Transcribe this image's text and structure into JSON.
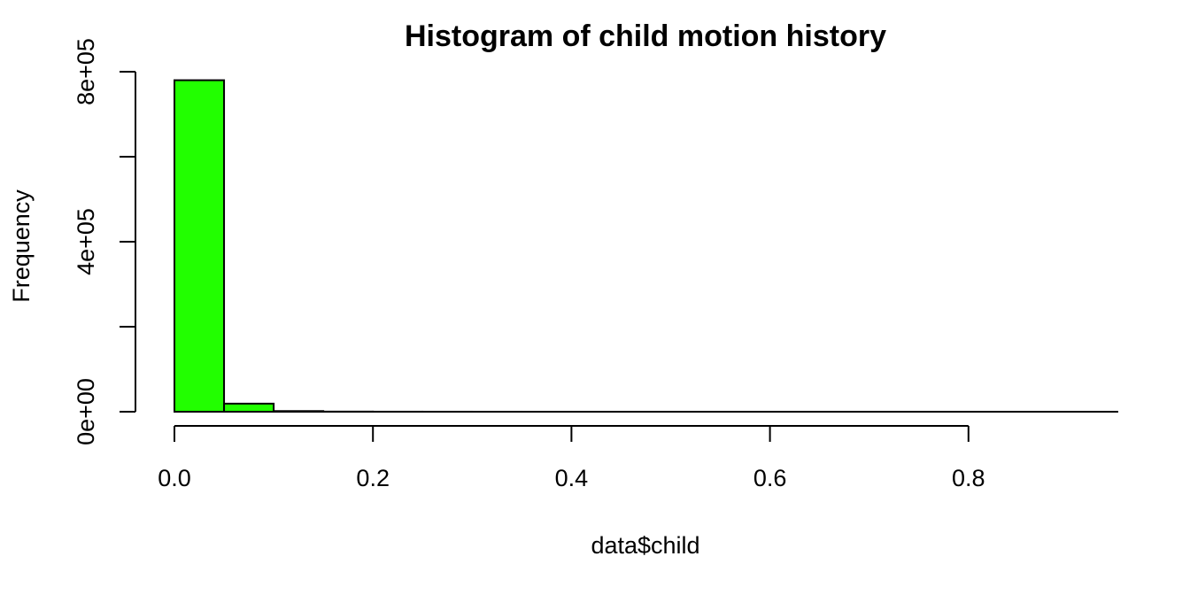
{
  "chart_data": {
    "type": "bar",
    "title": "Histogram of child motion history",
    "xlabel": "data$child",
    "ylabel": "Frequency",
    "bar_color": "#22ff00",
    "bins": [
      {
        "start": 0.0,
        "end": 0.05,
        "count": 780000
      },
      {
        "start": 0.05,
        "end": 0.1,
        "count": 19000
      },
      {
        "start": 0.1,
        "end": 0.15,
        "count": 1500
      },
      {
        "start": 0.15,
        "end": 0.2,
        "count": 300
      },
      {
        "start": 0.2,
        "end": 0.25,
        "count": 100
      },
      {
        "start": 0.25,
        "end": 0.3,
        "count": 50
      },
      {
        "start": 0.3,
        "end": 0.35,
        "count": 20
      },
      {
        "start": 0.35,
        "end": 0.4,
        "count": 10
      },
      {
        "start": 0.4,
        "end": 0.45,
        "count": 5
      },
      {
        "start": 0.45,
        "end": 0.5,
        "count": 3
      },
      {
        "start": 0.5,
        "end": 0.55,
        "count": 2
      },
      {
        "start": 0.55,
        "end": 0.6,
        "count": 1
      },
      {
        "start": 0.6,
        "end": 0.65,
        "count": 1
      },
      {
        "start": 0.65,
        "end": 0.7,
        "count": 1
      },
      {
        "start": 0.7,
        "end": 0.75,
        "count": 1
      },
      {
        "start": 0.75,
        "end": 0.8,
        "count": 1
      },
      {
        "start": 0.8,
        "end": 0.85,
        "count": 1
      },
      {
        "start": 0.85,
        "end": 0.9,
        "count": 1
      },
      {
        "start": 0.9,
        "end": 0.95,
        "count": 1
      }
    ],
    "x_ticks": [
      0.0,
      0.2,
      0.4,
      0.6,
      0.8
    ],
    "x_tick_labels": [
      "0.0",
      "0.2",
      "0.4",
      "0.6",
      "0.8"
    ],
    "y_ticks": [
      0,
      200000,
      400000,
      600000,
      800000
    ],
    "y_tick_labels": [
      "0e+00",
      "",
      "4e+05",
      "",
      "8e+05"
    ],
    "xlim": [
      0,
      0.95
    ],
    "ylim": [
      0,
      800000
    ],
    "grid": false,
    "legend": "none"
  }
}
